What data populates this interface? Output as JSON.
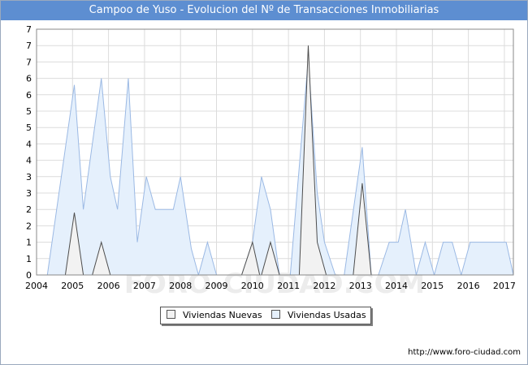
{
  "title": "Campoo de Yuso - Evolucion del Nº de Transacciones Inmobiliarias",
  "watermark": "FORO-CIUDAD.COM",
  "source": "http://www.foro-ciudad.com",
  "chart_data": {
    "type": "area",
    "title": "Campoo de Yuso - Evolucion del Nº de Transacciones Inmobiliarias",
    "xlabel": "",
    "ylabel": "",
    "x_ticks": [
      "2004",
      "2005",
      "2006",
      "2007",
      "2008",
      "2009",
      "2010",
      "2011",
      "2012",
      "2013",
      "2014",
      "2015",
      "2016",
      "2017"
    ],
    "y_ticks": [
      "0",
      "1",
      "1",
      "2",
      "2",
      "3",
      "3",
      "4",
      "4",
      "5",
      "5",
      "6",
      "6",
      "7",
      "7",
      "7"
    ],
    "xlim": [
      2004,
      2017.25
    ],
    "ylim": [
      0,
      7.5
    ],
    "grid": true,
    "legend_position": "bottom",
    "series": [
      {
        "name": "Viviendas Usadas",
        "fill": "#e5f0fc",
        "stroke": "#9bb9e4",
        "points": [
          [
            2004.3,
            0
          ],
          [
            2005.05,
            5.8
          ],
          [
            2005.3,
            2
          ],
          [
            2005.8,
            6
          ],
          [
            2006.05,
            3
          ],
          [
            2006.25,
            2
          ],
          [
            2006.55,
            6
          ],
          [
            2006.8,
            1
          ],
          [
            2007.05,
            3
          ],
          [
            2007.3,
            2
          ],
          [
            2007.8,
            2
          ],
          [
            2008.0,
            3
          ],
          [
            2008.3,
            0.8
          ],
          [
            2008.5,
            0
          ],
          [
            2008.75,
            1
          ],
          [
            2009.0,
            0
          ],
          [
            2009.7,
            0
          ],
          [
            2010.0,
            1
          ],
          [
            2010.25,
            3
          ],
          [
            2010.5,
            2
          ],
          [
            2010.75,
            0
          ],
          [
            2011.05,
            0
          ],
          [
            2011.55,
            6.6
          ],
          [
            2011.8,
            2.5
          ],
          [
            2012.0,
            1
          ],
          [
            2012.3,
            0
          ],
          [
            2012.55,
            0
          ],
          [
            2013.05,
            3.9
          ],
          [
            2013.3,
            0
          ],
          [
            2013.5,
            0
          ],
          [
            2013.8,
            1
          ],
          [
            2014.05,
            1
          ],
          [
            2014.25,
            2
          ],
          [
            2014.55,
            0
          ],
          [
            2014.8,
            1
          ],
          [
            2015.05,
            0
          ],
          [
            2015.3,
            1
          ],
          [
            2015.55,
            1
          ],
          [
            2015.8,
            0
          ],
          [
            2016.05,
            1
          ],
          [
            2017.05,
            1
          ],
          [
            2017.25,
            0
          ]
        ]
      },
      {
        "name": "Viviendas Nuevas",
        "fill": "#f2f2f2",
        "stroke": "#4d4d4d",
        "points": [
          [
            2004.8,
            0
          ],
          [
            2005.05,
            1.9
          ],
          [
            2005.3,
            0
          ],
          [
            2005.55,
            0
          ],
          [
            2005.8,
            1
          ],
          [
            2006.05,
            0
          ],
          [
            2009.7,
            0
          ],
          [
            2010.0,
            1
          ],
          [
            2010.2,
            0
          ],
          [
            2010.25,
            0
          ],
          [
            2010.5,
            1
          ],
          [
            2010.75,
            0
          ],
          [
            2011.3,
            0
          ],
          [
            2011.55,
            7
          ],
          [
            2011.8,
            1
          ],
          [
            2012.05,
            0
          ],
          [
            2012.8,
            0
          ],
          [
            2013.05,
            2.8
          ],
          [
            2013.3,
            0
          ]
        ]
      }
    ]
  }
}
